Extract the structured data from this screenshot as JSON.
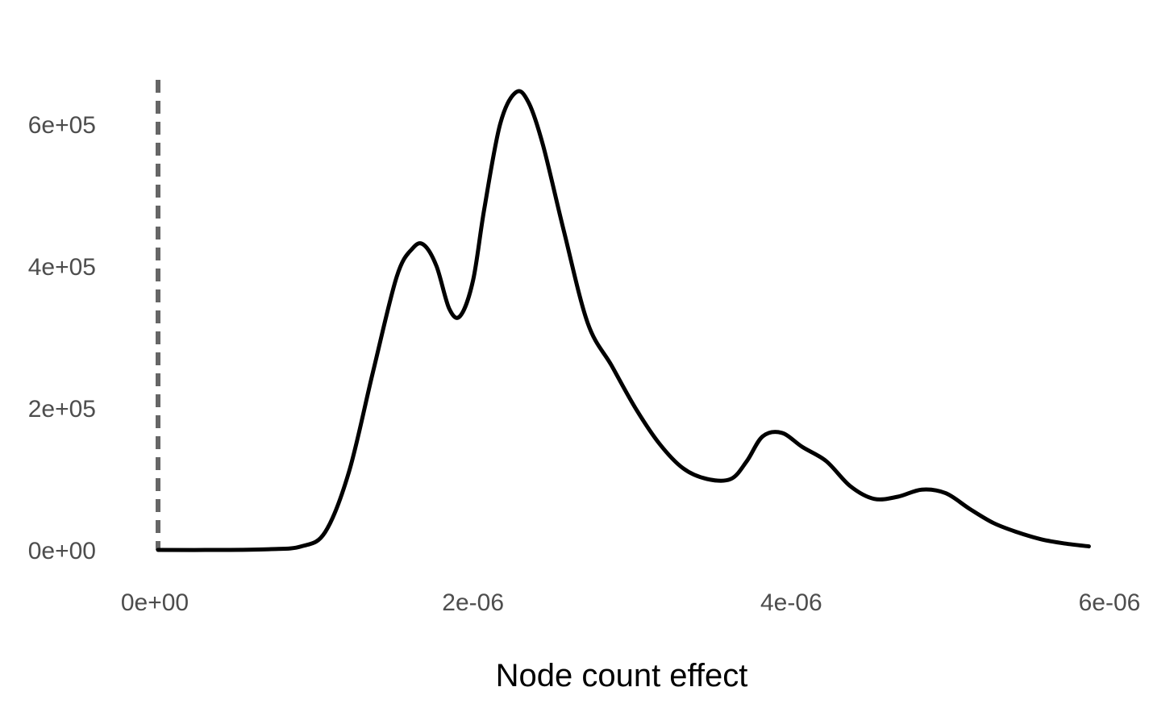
{
  "chart_data": {
    "type": "line",
    "title": "",
    "xlabel": "Node count effect",
    "ylabel": "",
    "xlim": [
      0,
      6e-06
    ],
    "ylim": [
      0,
      650000
    ],
    "grid": false,
    "legend": "none",
    "x_ticks": [
      {
        "value": 0,
        "label": "0e+00"
      },
      {
        "value": 2e-06,
        "label": "2e-06"
      },
      {
        "value": 4e-06,
        "label": "4e-06"
      },
      {
        "value": 6e-06,
        "label": "6e-06"
      }
    ],
    "y_ticks": [
      {
        "value": 0,
        "label": "0e+00"
      },
      {
        "value": 200000,
        "label": "2e+05"
      },
      {
        "value": 400000,
        "label": "4e+05"
      },
      {
        "value": 600000,
        "label": "6e+05"
      }
    ],
    "reference_line": {
      "x": 0,
      "style": "dashed",
      "color": "#666666"
    },
    "series": [
      {
        "color": "#000000",
        "x": [
          0,
          4e-07,
          7e-07,
          9e-07,
          1.05e-06,
          1.2e-06,
          1.35e-06,
          1.5e-06,
          1.6e-06,
          1.67e-06,
          1.75e-06,
          1.83e-06,
          1.9e-06,
          1.98e-06,
          2.05e-06,
          2.15e-06,
          2.25e-06,
          2.33e-06,
          2.42e-06,
          2.55e-06,
          2.7e-06,
          2.85e-06,
          3e-06,
          3.15e-06,
          3.3e-06,
          3.45e-06,
          3.6e-06,
          3.7e-06,
          3.8e-06,
          3.92e-06,
          4.05e-06,
          4.2e-06,
          4.35e-06,
          4.5e-06,
          4.65e-06,
          4.8e-06,
          4.95e-06,
          5.1e-06,
          5.25e-06,
          5.4e-06,
          5.55e-06,
          5.7e-06,
          5.85e-06
        ],
        "y": [
          0,
          0,
          1000,
          5000,
          25000,
          110000,
          250000,
          385000,
          425000,
          430000,
          400000,
          340000,
          330000,
          380000,
          480000,
          600000,
          645000,
          630000,
          570000,
          450000,
          320000,
          260000,
          200000,
          150000,
          115000,
          100000,
          100000,
          125000,
          160000,
          165000,
          145000,
          125000,
          90000,
          72000,
          75000,
          85000,
          80000,
          58000,
          38000,
          25000,
          15000,
          9000,
          5000
        ]
      }
    ]
  }
}
